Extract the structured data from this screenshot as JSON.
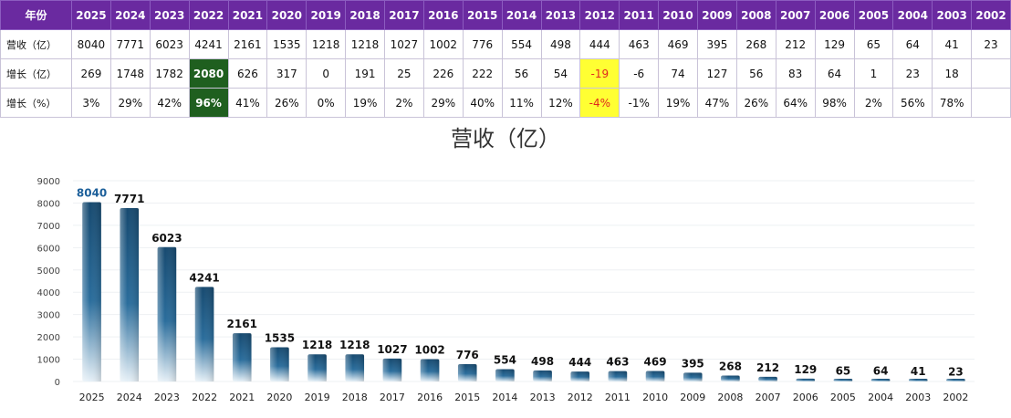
{
  "table": {
    "header_label": "年份",
    "row_labels": [
      "营收（亿）",
      "增长（亿）",
      "增长（%）"
    ],
    "years": [
      "2025",
      "2024",
      "2023",
      "2022",
      "2021",
      "2020",
      "2019",
      "2018",
      "2017",
      "2016",
      "2015",
      "2014",
      "2013",
      "2012",
      "2011",
      "2010",
      "2009",
      "2008",
      "2007",
      "2006",
      "2005",
      "2004",
      "2003",
      "2002"
    ],
    "revenue": [
      "8040",
      "7771",
      "6023",
      "4241",
      "2161",
      "1535",
      "1218",
      "1218",
      "1027",
      "1002",
      "776",
      "554",
      "498",
      "444",
      "463",
      "469",
      "395",
      "268",
      "212",
      "129",
      "65",
      "64",
      "41",
      "23"
    ],
    "growth_abs": [
      "269",
      "1748",
      "1782",
      "2080",
      "626",
      "317",
      "0",
      "191",
      "25",
      "226",
      "222",
      "56",
      "54",
      "-19",
      "-6",
      "74",
      "127",
      "56",
      "83",
      "64",
      "1",
      "23",
      "18",
      ""
    ],
    "growth_pct": [
      "3%",
      "29%",
      "42%",
      "96%",
      "41%",
      "26%",
      "0%",
      "19%",
      "2%",
      "29%",
      "40%",
      "11%",
      "12%",
      "-4%",
      "-1%",
      "19%",
      "47%",
      "26%",
      "64%",
      "98%",
      "2%",
      "56%",
      "78%",
      ""
    ],
    "highlight_colors": {
      "green": "#1f5f1f",
      "yellow": "#ffff33",
      "header": "#6a2aa0"
    }
  },
  "chart_data": {
    "type": "bar",
    "title": "营收（亿）",
    "categories": [
      "2025",
      "2024",
      "2023",
      "2022",
      "2021",
      "2020",
      "2019",
      "2018",
      "2017",
      "2016",
      "2015",
      "2014",
      "2013",
      "2012",
      "2011",
      "2010",
      "2009",
      "2008",
      "2007",
      "2006",
      "2005",
      "2004",
      "2003",
      "2002"
    ],
    "values": [
      8040,
      7771,
      6023,
      4241,
      2161,
      1535,
      1218,
      1218,
      1027,
      1002,
      776,
      554,
      498,
      444,
      463,
      469,
      395,
      268,
      212,
      129,
      65,
      64,
      41,
      23
    ],
    "ylim": [
      0,
      9000
    ],
    "yticks": [
      0,
      1000,
      2000,
      3000,
      4000,
      5000,
      6000,
      7000,
      8000,
      9000
    ],
    "grid": true,
    "bar_color": "#1c5a86"
  }
}
